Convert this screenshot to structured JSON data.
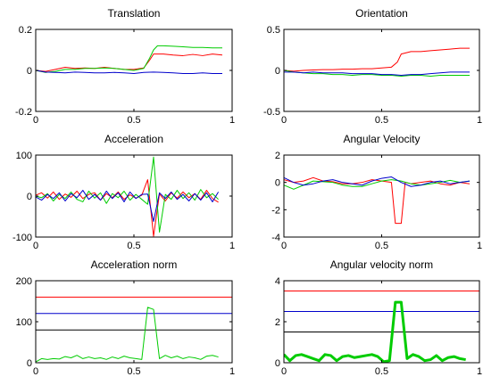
{
  "chart_data": [
    {
      "type": "line",
      "title": "Translation",
      "xlim": [
        0,
        1
      ],
      "ylim": [
        -0.2,
        0.2
      ],
      "xticks": [
        "0",
        "0.5",
        "1"
      ],
      "yticks": [
        "-0.2",
        "0",
        "0.2"
      ],
      "xtick_values": [
        0,
        0.5,
        1
      ],
      "ytick_values": [
        -0.2,
        0,
        0.2
      ],
      "series": [
        {
          "color": "#ff0000",
          "line_width": "thin",
          "x": [
            0,
            0.05,
            0.1,
            0.15,
            0.2,
            0.25,
            0.3,
            0.35,
            0.4,
            0.45,
            0.5,
            0.55,
            0.58,
            0.6,
            0.65,
            0.7,
            0.75,
            0.8,
            0.85,
            0.9,
            0.95
          ],
          "y": [
            0.0,
            -0.005,
            0.005,
            0.015,
            0.01,
            0.012,
            0.01,
            0.015,
            0.01,
            0.005,
            0.005,
            0.012,
            0.05,
            0.08,
            0.08,
            0.075,
            0.072,
            0.078,
            0.072,
            0.08,
            0.075
          ]
        },
        {
          "color": "#00cc00",
          "line_width": "thin",
          "x": [
            0,
            0.05,
            0.1,
            0.15,
            0.2,
            0.25,
            0.3,
            0.35,
            0.4,
            0.45,
            0.5,
            0.55,
            0.58,
            0.6,
            0.62,
            0.65,
            0.7,
            0.75,
            0.8,
            0.85,
            0.9,
            0.95
          ],
          "y": [
            0.0,
            -0.01,
            -0.005,
            0.005,
            0.005,
            0.01,
            0.01,
            0.012,
            0.01,
            0.005,
            0.0,
            0.01,
            0.06,
            0.1,
            0.12,
            0.12,
            0.118,
            0.115,
            0.112,
            0.112,
            0.11,
            0.11
          ]
        },
        {
          "color": "#0000cc",
          "line_width": "thin",
          "x": [
            0,
            0.05,
            0.1,
            0.15,
            0.2,
            0.25,
            0.3,
            0.35,
            0.4,
            0.45,
            0.5,
            0.55,
            0.6,
            0.65,
            0.7,
            0.75,
            0.8,
            0.85,
            0.9,
            0.95
          ],
          "y": [
            0.0,
            -0.008,
            -0.01,
            -0.012,
            -0.008,
            -0.01,
            -0.012,
            -0.012,
            -0.01,
            -0.012,
            -0.015,
            -0.01,
            -0.008,
            -0.01,
            -0.012,
            -0.015,
            -0.015,
            -0.012,
            -0.015,
            -0.015
          ]
        }
      ]
    },
    {
      "type": "line",
      "title": "Orientation",
      "xlim": [
        0,
        1
      ],
      "ylim": [
        -0.5,
        0.5
      ],
      "xticks": [
        "0",
        "0.5",
        "1"
      ],
      "yticks": [
        "-0.5",
        "0",
        "0.5"
      ],
      "xtick_values": [
        0,
        0.5,
        1
      ],
      "ytick_values": [
        -0.5,
        0,
        0.5
      ],
      "series": [
        {
          "color": "#ff0000",
          "line_width": "thin",
          "x": [
            0,
            0.05,
            0.1,
            0.15,
            0.2,
            0.25,
            0.3,
            0.35,
            0.4,
            0.45,
            0.5,
            0.55,
            0.58,
            0.6,
            0.65,
            0.7,
            0.75,
            0.8,
            0.85,
            0.9,
            0.95
          ],
          "y": [
            0.0,
            -0.01,
            0.0,
            0.005,
            0.01,
            0.01,
            0.015,
            0.015,
            0.02,
            0.02,
            0.03,
            0.04,
            0.1,
            0.2,
            0.23,
            0.23,
            0.24,
            0.25,
            0.26,
            0.27,
            0.27
          ]
        },
        {
          "color": "#00cc00",
          "line_width": "thin",
          "x": [
            0,
            0.05,
            0.1,
            0.15,
            0.2,
            0.25,
            0.3,
            0.35,
            0.4,
            0.45,
            0.5,
            0.55,
            0.6,
            0.65,
            0.7,
            0.75,
            0.8,
            0.85,
            0.9,
            0.95
          ],
          "y": [
            0.0,
            -0.02,
            -0.03,
            -0.04,
            -0.04,
            -0.05,
            -0.05,
            -0.06,
            -0.05,
            -0.05,
            -0.06,
            -0.06,
            -0.07,
            -0.06,
            -0.06,
            -0.07,
            -0.06,
            -0.06,
            -0.06,
            -0.06
          ]
        },
        {
          "color": "#0000cc",
          "line_width": "thin",
          "x": [
            0,
            0.05,
            0.1,
            0.15,
            0.2,
            0.25,
            0.3,
            0.35,
            0.4,
            0.45,
            0.5,
            0.55,
            0.6,
            0.65,
            0.7,
            0.75,
            0.8,
            0.85,
            0.9,
            0.95
          ],
          "y": [
            -0.02,
            -0.02,
            -0.03,
            -0.02,
            -0.03,
            -0.03,
            -0.03,
            -0.04,
            -0.04,
            -0.04,
            -0.05,
            -0.05,
            -0.06,
            -0.05,
            -0.05,
            -0.04,
            -0.03,
            -0.02,
            -0.02,
            -0.02
          ]
        }
      ]
    },
    {
      "type": "line",
      "title": "Acceleration",
      "xlim": [
        0,
        1
      ],
      "ylim": [
        -100,
        100
      ],
      "xticks": [
        "0",
        "0.5",
        "1"
      ],
      "yticks": [
        "-100",
        "0",
        "100"
      ],
      "xtick_values": [
        0,
        0.5,
        1
      ],
      "ytick_values": [
        -100,
        0,
        100
      ],
      "series": [
        {
          "color": "#ff0000",
          "line_width": "thin",
          "x": [
            0,
            0.03,
            0.06,
            0.09,
            0.12,
            0.15,
            0.18,
            0.21,
            0.24,
            0.27,
            0.3,
            0.33,
            0.36,
            0.39,
            0.42,
            0.45,
            0.48,
            0.51,
            0.54,
            0.57,
            0.6,
            0.63,
            0.66,
            0.69,
            0.72,
            0.75,
            0.78,
            0.81,
            0.84,
            0.87,
            0.9,
            0.93
          ],
          "y": [
            2,
            8,
            -5,
            10,
            -8,
            5,
            -3,
            12,
            -6,
            4,
            8,
            -10,
            6,
            -4,
            10,
            -8,
            3,
            -5,
            2,
            40,
            -98,
            5,
            -12,
            8,
            -5,
            10,
            -4,
            6,
            -8,
            14,
            -6,
            -15
          ]
        },
        {
          "color": "#00cc00",
          "line_width": "thin",
          "x": [
            0,
            0.03,
            0.06,
            0.09,
            0.12,
            0.15,
            0.18,
            0.21,
            0.24,
            0.27,
            0.3,
            0.33,
            0.36,
            0.39,
            0.42,
            0.45,
            0.48,
            0.51,
            0.54,
            0.57,
            0.6,
            0.63,
            0.66,
            0.69,
            0.72,
            0.75,
            0.78,
            0.81,
            0.84,
            0.87,
            0.9,
            0.93
          ],
          "y": [
            0,
            -4,
            6,
            -12,
            4,
            -6,
            10,
            -8,
            -14,
            12,
            -5,
            8,
            -18,
            6,
            -4,
            12,
            -10,
            4,
            -8,
            -20,
            95,
            -88,
            4,
            -8,
            14,
            -6,
            8,
            -10,
            16,
            -4,
            6,
            -8
          ]
        },
        {
          "color": "#0000cc",
          "line_width": "thin",
          "x": [
            0,
            0.03,
            0.06,
            0.09,
            0.12,
            0.15,
            0.18,
            0.21,
            0.24,
            0.27,
            0.3,
            0.33,
            0.36,
            0.39,
            0.42,
            0.45,
            0.48,
            0.51,
            0.54,
            0.57,
            0.6,
            0.63,
            0.66,
            0.69,
            0.72,
            0.75,
            0.78,
            0.81,
            0.84,
            0.87,
            0.9,
            0.93
          ],
          "y": [
            -2,
            -10,
            4,
            -6,
            8,
            -12,
            6,
            -4,
            14,
            -8,
            4,
            -10,
            12,
            -6,
            8,
            -14,
            10,
            -6,
            4,
            5,
            -62,
            8,
            -6,
            10,
            -8,
            4,
            -12,
            6,
            -10,
            8,
            -14,
            10
          ]
        }
      ]
    },
    {
      "type": "line",
      "title": "Angular Velocity",
      "xlim": [
        0,
        1
      ],
      "ylim": [
        -4,
        2
      ],
      "xticks": [
        "0",
        "0.5",
        "1"
      ],
      "yticks": [
        "-4",
        "-2",
        "0",
        "2"
      ],
      "xtick_values": [
        0,
        0.5,
        1
      ],
      "ytick_values": [
        -4,
        -2,
        0,
        2
      ],
      "series": [
        {
          "color": "#ff0000",
          "line_width": "thin",
          "x": [
            0,
            0.05,
            0.1,
            0.15,
            0.2,
            0.25,
            0.3,
            0.35,
            0.4,
            0.45,
            0.5,
            0.55,
            0.57,
            0.6,
            0.62,
            0.65,
            0.7,
            0.75,
            0.8,
            0.85,
            0.9,
            0.95
          ],
          "y": [
            0.2,
            0.0,
            0.1,
            0.35,
            0.1,
            0.05,
            -0.1,
            -0.1,
            0.0,
            0.2,
            0.1,
            0.0,
            -3.0,
            -3.0,
            0.0,
            -0.1,
            0.0,
            0.1,
            -0.1,
            -0.2,
            0.0,
            -0.1
          ]
        },
        {
          "color": "#00cc00",
          "line_width": "thin",
          "x": [
            0,
            0.05,
            0.1,
            0.15,
            0.2,
            0.25,
            0.3,
            0.35,
            0.4,
            0.45,
            0.5,
            0.55,
            0.6,
            0.65,
            0.7,
            0.75,
            0.8,
            0.85,
            0.9,
            0.95
          ],
          "y": [
            -0.2,
            -0.5,
            -0.2,
            0.1,
            0.05,
            0.0,
            -0.2,
            -0.3,
            -0.3,
            -0.1,
            0.1,
            0.2,
            0.1,
            -0.1,
            -0.2,
            -0.1,
            0.0,
            0.15,
            0.0,
            0.1
          ]
        },
        {
          "color": "#0000cc",
          "line_width": "thin",
          "x": [
            0,
            0.05,
            0.1,
            0.15,
            0.2,
            0.25,
            0.3,
            0.35,
            0.4,
            0.45,
            0.5,
            0.55,
            0.6,
            0.65,
            0.7,
            0.75,
            0.8,
            0.85,
            0.9,
            0.95
          ],
          "y": [
            0.35,
            0.0,
            -0.2,
            -0.1,
            0.1,
            0.2,
            0.0,
            -0.1,
            -0.2,
            0.1,
            0.3,
            0.4,
            0.0,
            -0.3,
            -0.2,
            0.0,
            0.1,
            -0.1,
            0.0,
            0.1
          ]
        }
      ]
    },
    {
      "type": "line",
      "title": "Acceleration norm",
      "xlim": [
        0,
        1
      ],
      "ylim": [
        0,
        200
      ],
      "xticks": [
        "0",
        "0.5",
        "1"
      ],
      "yticks": [
        "0",
        "100",
        "200"
      ],
      "xtick_values": [
        0,
        0.5,
        1
      ],
      "ytick_values": [
        0,
        100,
        200
      ],
      "series": [
        {
          "color": "#ff0000",
          "line_width": "thin",
          "x": [
            0,
            1
          ],
          "y": [
            160,
            160
          ]
        },
        {
          "color": "#0000cc",
          "line_width": "thin",
          "x": [
            0,
            1
          ],
          "y": [
            120,
            120
          ]
        },
        {
          "color": "#000000",
          "line_width": "thin",
          "x": [
            0,
            1
          ],
          "y": [
            80,
            80
          ]
        },
        {
          "color": "#00cc00",
          "line_width": "thin",
          "x": [
            0,
            0.03,
            0.06,
            0.09,
            0.12,
            0.15,
            0.18,
            0.21,
            0.24,
            0.27,
            0.3,
            0.33,
            0.36,
            0.39,
            0.42,
            0.45,
            0.48,
            0.51,
            0.54,
            0.57,
            0.6,
            0.63,
            0.66,
            0.69,
            0.72,
            0.75,
            0.78,
            0.81,
            0.84,
            0.87,
            0.9,
            0.93
          ],
          "y": [
            2,
            10,
            8,
            10,
            9,
            15,
            12,
            18,
            10,
            14,
            10,
            12,
            8,
            14,
            10,
            16,
            12,
            10,
            8,
            135,
            130,
            10,
            18,
            12,
            16,
            10,
            14,
            12,
            8,
            16,
            18,
            14
          ]
        }
      ]
    },
    {
      "type": "line",
      "title": "Angular velocity norm",
      "xlim": [
        0,
        1
      ],
      "ylim": [
        0,
        4
      ],
      "xticks": [
        "0",
        "0.5",
        "1"
      ],
      "yticks": [
        "0",
        "2",
        "4"
      ],
      "xtick_values": [
        0,
        0.5,
        1
      ],
      "ytick_values": [
        0,
        2,
        4
      ],
      "series": [
        {
          "color": "#ff0000",
          "line_width": "thin",
          "x": [
            0,
            1
          ],
          "y": [
            3.5,
            3.5
          ]
        },
        {
          "color": "#0000cc",
          "line_width": "thin",
          "x": [
            0,
            1
          ],
          "y": [
            2.5,
            2.5
          ]
        },
        {
          "color": "#000000",
          "line_width": "thin",
          "x": [
            0,
            1
          ],
          "y": [
            1.5,
            1.5
          ]
        },
        {
          "color": "#00cc00",
          "line_width": "thick",
          "x": [
            0,
            0.03,
            0.06,
            0.09,
            0.12,
            0.15,
            0.18,
            0.21,
            0.24,
            0.27,
            0.3,
            0.33,
            0.36,
            0.39,
            0.42,
            0.45,
            0.48,
            0.51,
            0.54,
            0.57,
            0.6,
            0.63,
            0.66,
            0.69,
            0.72,
            0.75,
            0.78,
            0.81,
            0.84,
            0.87,
            0.9,
            0.93
          ],
          "y": [
            0.4,
            0.1,
            0.35,
            0.4,
            0.3,
            0.2,
            0.1,
            0.4,
            0.35,
            0.1,
            0.3,
            0.35,
            0.25,
            0.3,
            0.35,
            0.4,
            0.3,
            0.05,
            0.1,
            2.95,
            2.95,
            0.2,
            0.4,
            0.3,
            0.1,
            0.15,
            0.35,
            0.1,
            0.25,
            0.3,
            0.2,
            0.15
          ]
        }
      ]
    }
  ]
}
